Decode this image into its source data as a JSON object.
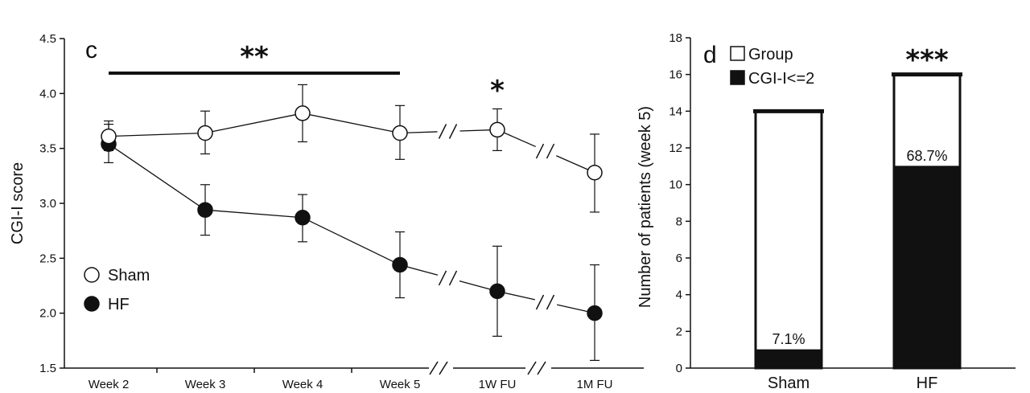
{
  "chart_data": [
    {
      "type": "line",
      "panel_label": "c",
      "ylabel": "CGI-I score",
      "ylim": [
        1.5,
        4.5
      ],
      "yticks": [
        "1.5",
        "2.0",
        "2.5",
        "3.0",
        "3.5",
        "4.0",
        "4.5"
      ],
      "categories": [
        "Week 2",
        "Week 3",
        "Week 4",
        "Week 5",
        "1W FU",
        "1M FU"
      ],
      "series": [
        {
          "name": "Sham",
          "marker": "open-circle",
          "values": [
            3.61,
            3.64,
            3.82,
            3.64,
            3.67,
            3.28
          ],
          "error_low": [
            3.48,
            3.45,
            3.56,
            3.4,
            3.48,
            2.92
          ],
          "error_high": [
            3.72,
            3.84,
            4.08,
            3.89,
            3.86,
            3.63
          ]
        },
        {
          "name": "HF",
          "marker": "filled-circle",
          "values": [
            3.54,
            2.94,
            2.87,
            2.44,
            2.2,
            2.0
          ],
          "error_low": [
            3.37,
            2.71,
            2.65,
            2.14,
            1.79,
            1.57
          ],
          "error_high": [
            3.75,
            3.17,
            3.08,
            2.74,
            2.61,
            2.44
          ]
        }
      ],
      "annotations": [
        {
          "text": "**",
          "spans": [
            "Week 2",
            "Week 5"
          ]
        },
        {
          "text": "*",
          "at": "1W FU"
        }
      ],
      "axis_breaks": [
        "between Week 5 and 1W FU",
        "between 1W FU and 1M FU"
      ],
      "legend": "bottom-left",
      "grid": false
    },
    {
      "type": "bar",
      "panel_label": "d",
      "ylabel": "Number of patients (week 5)",
      "ylim": [
        0,
        18
      ],
      "yticks": [
        "0",
        "2",
        "4",
        "6",
        "8",
        "10",
        "12",
        "14",
        "16",
        "18"
      ],
      "categories": [
        "Sham",
        "HF"
      ],
      "series": [
        {
          "name": "Group",
          "fill": "white",
          "values": [
            14,
            16
          ]
        },
        {
          "name": "CGI-I<=2",
          "fill": "black",
          "values": [
            1,
            11
          ]
        }
      ],
      "bar_labels": [
        "7.1%",
        "68.7%"
      ],
      "annotations": [
        {
          "text": "***",
          "at": "HF"
        }
      ],
      "legend": "top-left",
      "grid": false
    }
  ],
  "colors": {
    "ink": "#111111",
    "background": "#ffffff"
  }
}
